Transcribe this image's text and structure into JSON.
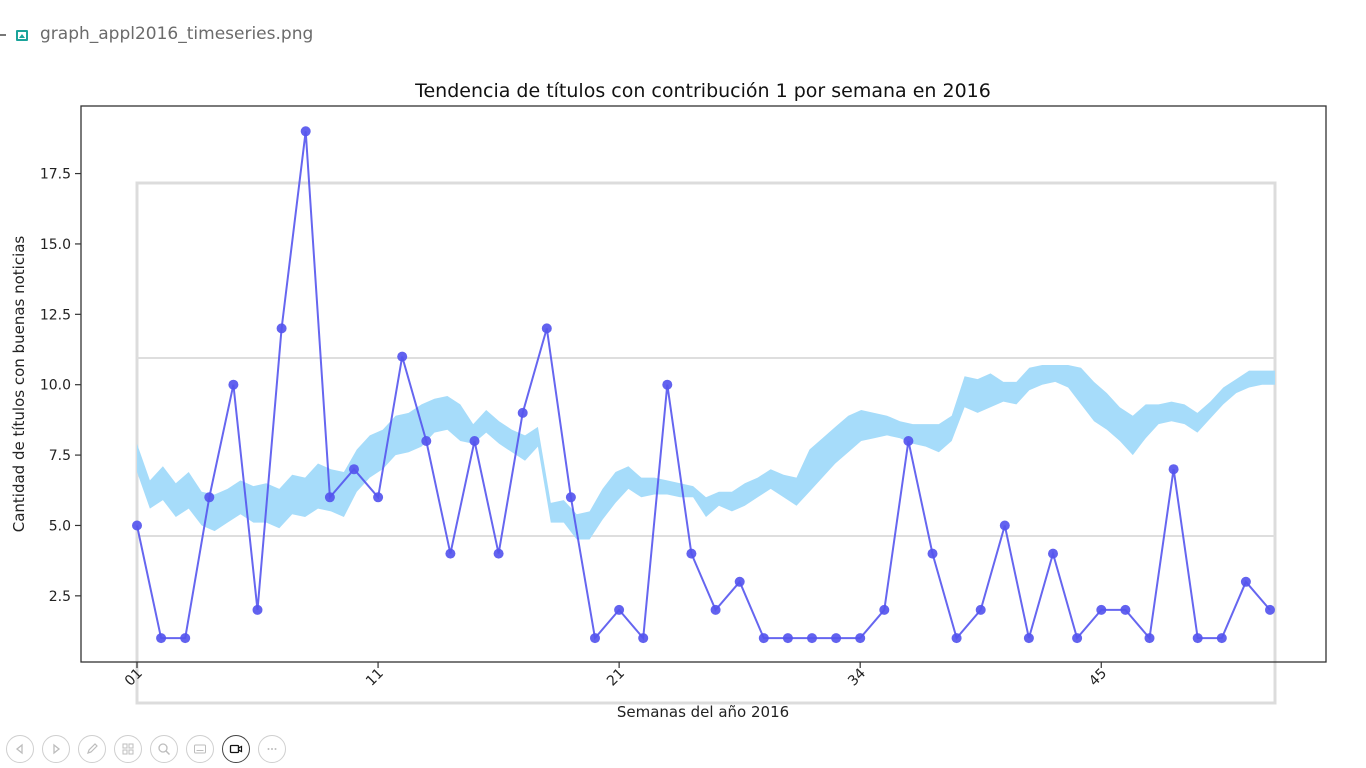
{
  "file": {
    "name": "graph_appl2016_timeseries.png",
    "icon": "image-file-icon"
  },
  "toolbar": {
    "buttons": [
      {
        "name": "previous-icon"
      },
      {
        "name": "next-icon"
      },
      {
        "name": "pen-icon"
      },
      {
        "name": "slides-icon"
      },
      {
        "name": "zoom-icon"
      },
      {
        "name": "subtitles-icon"
      },
      {
        "name": "camera-icon",
        "active": true
      },
      {
        "name": "more-options-icon"
      }
    ]
  },
  "chart_data": {
    "type": "line",
    "title": "Tendencia de títulos con contribución 1 por semana en 2016",
    "xlabel": "Semanas del año 2016",
    "ylabel": "Cantidad de títulos con buenas noticias",
    "ylim": [
      0.15,
      19.9
    ],
    "yticks": [
      2.5,
      5.0,
      7.5,
      10.0,
      12.5,
      15.0,
      17.5
    ],
    "ytick_labels": [
      "2.5",
      "5.0",
      "7.5",
      "10.0",
      "12.5",
      "15.0",
      "17.5"
    ],
    "xticks": [
      {
        "index": 0,
        "label": "01"
      },
      {
        "index": 10,
        "label": "11"
      },
      {
        "index": 20,
        "label": "21"
      },
      {
        "index": 30,
        "label": "34"
      },
      {
        "index": 40,
        "label": "45"
      }
    ],
    "series": [
      {
        "color": "#5555ee",
        "values": [
          5,
          1,
          1,
          6,
          10,
          2,
          12,
          19,
          6,
          7,
          6,
          11,
          8,
          4,
          8,
          4,
          9,
          12,
          6,
          1,
          2,
          1,
          10,
          4,
          2,
          3,
          1,
          1,
          1,
          1,
          1,
          2,
          8,
          4,
          1,
          2,
          5,
          1,
          4,
          1,
          2,
          2,
          1,
          7,
          1,
          1,
          3,
          2
        ]
      }
    ],
    "band": {
      "color": "#a6dcfa",
      "lower": [
        6.9,
        5.6,
        5.9,
        5.3,
        5.6,
        5.0,
        4.8,
        5.1,
        5.4,
        5.1,
        5.1,
        4.9,
        5.4,
        5.3,
        5.6,
        5.5,
        5.3,
        6.2,
        6.7,
        7.0,
        7.5,
        7.6,
        7.8,
        8.3,
        8.4,
        8.0,
        7.9,
        8.3,
        7.9,
        7.6,
        7.3,
        7.8,
        5.1,
        5.1,
        4.5,
        4.5,
        5.2,
        5.8,
        6.3,
        6.0,
        6.1,
        6.1,
        6.0,
        6.0,
        5.3,
        5.7,
        5.5,
        5.7,
        6.0,
        6.3,
        6.0,
        5.7,
        6.2,
        6.7,
        7.2,
        7.6,
        8.0,
        8.1,
        8.2,
        8.1,
        7.9,
        7.8,
        7.6,
        8.0,
        9.2,
        9.0,
        9.2,
        9.4,
        9.3,
        9.8,
        10.0,
        10.1,
        9.9,
        9.3,
        8.7,
        8.4,
        8.0,
        7.5,
        8.1,
        8.6,
        8.7,
        8.6,
        8.3,
        8.8,
        9.3,
        9.7,
        9.9,
        10.0,
        10.0
      ],
      "upper": [
        7.9,
        6.6,
        7.1,
        6.5,
        6.9,
        6.2,
        6.1,
        6.3,
        6.6,
        6.4,
        6.5,
        6.3,
        6.8,
        6.7,
        7.2,
        7.0,
        6.9,
        7.7,
        8.2,
        8.4,
        8.9,
        9.0,
        9.3,
        9.5,
        9.6,
        9.3,
        8.6,
        9.1,
        8.7,
        8.4,
        8.2,
        8.5,
        5.8,
        5.9,
        5.4,
        5.5,
        6.3,
        6.9,
        7.1,
        6.7,
        6.7,
        6.6,
        6.5,
        6.4,
        6.0,
        6.2,
        6.2,
        6.5,
        6.7,
        7.0,
        6.8,
        6.7,
        7.7,
        8.1,
        8.5,
        8.9,
        9.1,
        9.0,
        8.9,
        8.7,
        8.6,
        8.6,
        8.6,
        8.9,
        10.3,
        10.2,
        10.4,
        10.1,
        10.1,
        10.6,
        10.7,
        10.7,
        10.7,
        10.6,
        10.1,
        9.7,
        9.2,
        8.9,
        9.3,
        9.3,
        9.4,
        9.3,
        9.0,
        9.4,
        9.9,
        10.2,
        10.5,
        10.5,
        10.5
      ]
    },
    "grid": "off",
    "legend": "none"
  }
}
